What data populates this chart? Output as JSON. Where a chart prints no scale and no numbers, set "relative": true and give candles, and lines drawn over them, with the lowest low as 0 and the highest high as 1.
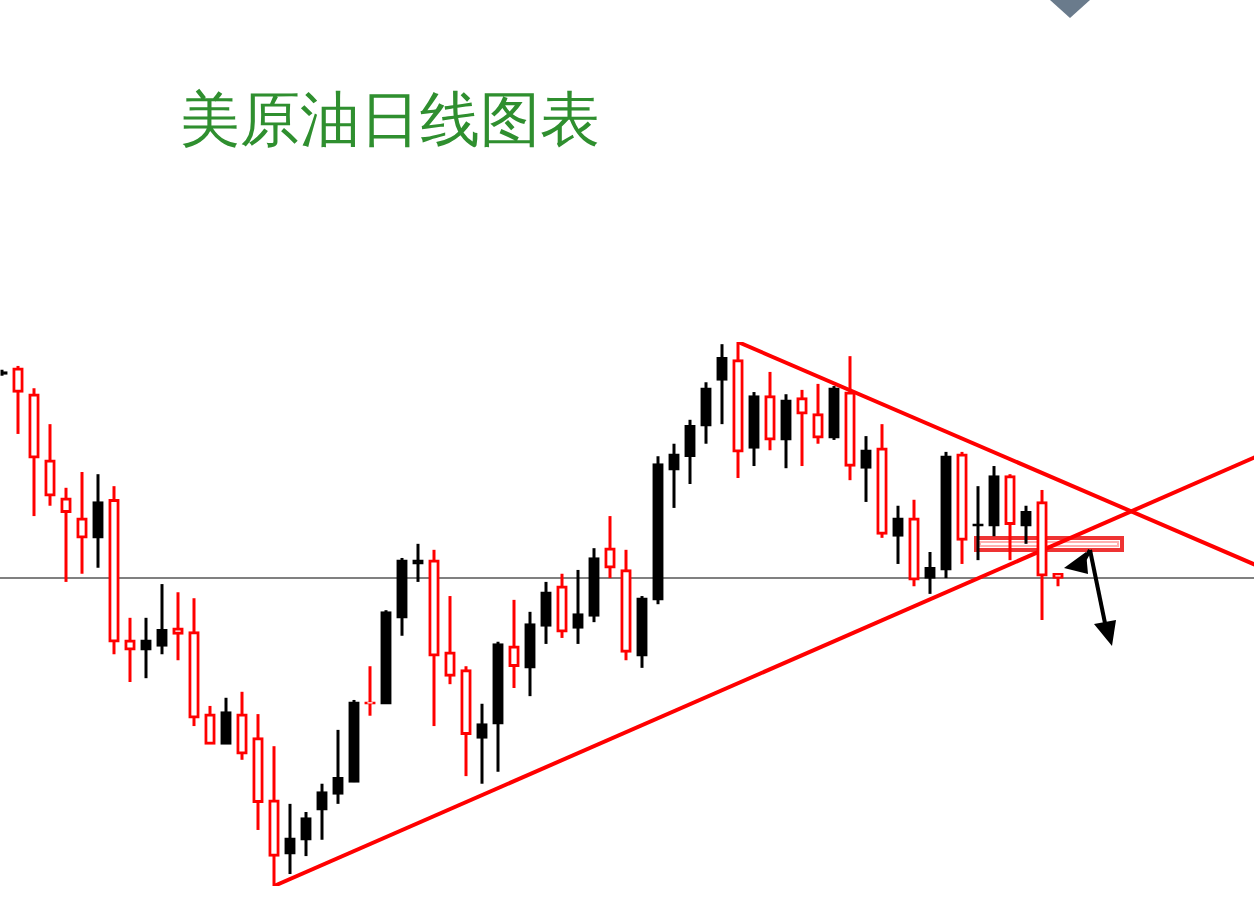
{
  "chart_data": {
    "type": "candlestick",
    "title": "美原油日线图表",
    "relative": true,
    "categories": [
      null,
      null,
      null,
      null,
      null,
      null,
      null,
      null,
      null,
      null,
      null,
      null,
      null,
      null,
      null,
      null,
      null,
      null,
      null,
      null,
      null,
      null,
      null,
      null,
      null,
      null,
      null,
      null,
      null,
      null,
      null,
      null,
      null,
      null,
      null,
      null,
      null,
      null,
      null,
      null,
      null,
      null,
      null,
      null,
      null,
      null,
      null,
      null,
      null,
      null,
      null,
      null,
      null,
      null,
      null,
      null,
      null,
      null,
      null,
      null,
      null,
      null,
      null,
      null,
      null,
      null,
      null,
      null,
      null,
      null,
      null,
      null,
      null,
      null,
      null,
      null,
      null,
      null,
      null,
      null
    ],
    "ohlc": [
      [
        0.941,
        0.949,
        0.938,
        0.945
      ],
      [
        0.952,
        0.956,
        0.831,
        0.908
      ],
      [
        0.904,
        0.915,
        0.68,
        0.787
      ],
      [
        0.783,
        0.849,
        0.699,
        0.717
      ],
      [
        0.713,
        0.732,
        0.559,
        0.687
      ],
      [
        0.676,
        0.761,
        0.574,
        0.64
      ],
      [
        0.64,
        0.757,
        0.585,
        0.706
      ],
      [
        0.71,
        0.735,
        0.426,
        0.449
      ],
      [
        0.452,
        0.493,
        0.375,
        0.434
      ],
      [
        0.434,
        0.493,
        0.382,
        0.452
      ],
      [
        0.441,
        0.555,
        0.426,
        0.471
      ],
      [
        0.474,
        0.54,
        0.415,
        0.463
      ],
      [
        0.467,
        0.529,
        0.294,
        0.309
      ],
      [
        0.316,
        0.331,
        0.261,
        0.261
      ],
      [
        0.261,
        0.346,
        0.261,
        0.32
      ],
      [
        0.316,
        0.357,
        0.232,
        0.243
      ],
      [
        0.272,
        0.316,
        0.103,
        0.154
      ],
      [
        0.158,
        0.257,
        0,
        0.055
      ],
      [
        0.059,
        0.151,
        0.022,
        0.088
      ],
      [
        0.085,
        0.136,
        0.055,
        0.125
      ],
      [
        0.14,
        0.188,
        0.085,
        0.173
      ],
      [
        0.169,
        0.287,
        0.151,
        0.199
      ],
      [
        0.191,
        0.342,
        0.191,
        0.338
      ],
      [
        0.338,
        0.404,
        0.313,
        0.335
      ],
      [
        0.335,
        0.507,
        0.335,
        0.504
      ],
      [
        0.493,
        0.603,
        0.46,
        0.599
      ],
      [
        0.592,
        0.629,
        0.559,
        0.599
      ],
      [
        0.599,
        0.618,
        0.294,
        0.423
      ],
      [
        0.43,
        0.533,
        0.371,
        0.386
      ],
      [
        0.397,
        0.404,
        0.202,
        0.279
      ],
      [
        0.272,
        0.335,
        0.188,
        0.298
      ],
      [
        0.298,
        0.449,
        0.21,
        0.445
      ],
      [
        0.441,
        0.526,
        0.364,
        0.404
      ],
      [
        0.401,
        0.504,
        0.349,
        0.482
      ],
      [
        0.478,
        0.559,
        0.445,
        0.54
      ],
      [
        0.551,
        0.574,
        0.456,
        0.467
      ],
      [
        0.474,
        0.581,
        0.445,
        0.5
      ],
      [
        0.496,
        0.621,
        0.485,
        0.603
      ],
      [
        0.621,
        0.68,
        0.566,
        0.585
      ],
      [
        0.581,
        0.618,
        0.415,
        0.43
      ],
      [
        0.423,
        0.533,
        0.401,
        0.529
      ],
      [
        0.526,
        0.79,
        0.518,
        0.776
      ],
      [
        0.765,
        0.813,
        0.695,
        0.794
      ],
      [
        0.79,
        0.857,
        0.739,
        0.846
      ],
      [
        0.846,
        0.926,
        0.813,
        0.915
      ],
      [
        0.93,
        0.996,
        0.849,
        0.971
      ],
      [
        0.967,
        1,
        0.75,
        0.798
      ],
      [
        0.805,
        0.908,
        0.772,
        0.901
      ],
      [
        0.901,
        0.945,
        0.801,
        0.82
      ],
      [
        0.82,
        0.904,
        0.768,
        0.893
      ],
      [
        0.897,
        0.912,
        0.772,
        0.868
      ],
      [
        0.868,
        0.923,
        0.813,
        0.824
      ],
      [
        0.824,
        0.919,
        0.82,
        0.915
      ],
      [
        0.908,
        0.974,
        0.746,
        0.772
      ],
      [
        0.768,
        0.827,
        0.706,
        0.801
      ],
      [
        0.805,
        0.849,
        0.64,
        0.647
      ],
      [
        0.643,
        0.699,
        0.592,
        0.676
      ],
      [
        0.676,
        0.71,
        0.551,
        0.563
      ],
      [
        0.566,
        0.614,
        0.537,
        0.585
      ],
      [
        0.581,
        0.798,
        0.566,
        0.79
      ],
      [
        0.794,
        0.798,
        0.592,
        0.636
      ],
      [
        0.662,
        0.735,
        0.599,
        0.665
      ],
      [
        0.662,
        0.772,
        0.643,
        0.754
      ],
      [
        0.754,
        0.757,
        0.599,
        0.665
      ],
      [
        0.662,
        0.699,
        0.629,
        0.688
      ],
      [
        0.706,
        0.728,
        0.489,
        0.57
      ],
      [
        0.574,
        0.574,
        0.551,
        0.566
      ],
      null,
      null,
      null,
      null,
      null,
      null,
      null,
      null,
      null,
      null,
      null,
      null,
      null
    ],
    "colors": [
      "#000000",
      "#ff0000",
      "#ff0000",
      "#ff0000",
      "#ff0000",
      "#ff0000",
      "#000000",
      "#ff0000",
      "#ff0000",
      "#000000",
      "#000000",
      "#ff0000",
      "#ff0000",
      "#ff0000",
      "#000000",
      "#ff0000",
      "#ff0000",
      "#ff0000",
      "#000000",
      "#000000",
      "#000000",
      "#000000",
      "#000000",
      "#ff0000",
      "#000000",
      "#000000",
      "#000000",
      "#ff0000",
      "#ff0000",
      "#ff0000",
      "#000000",
      "#000000",
      "#ff0000",
      "#000000",
      "#000000",
      "#ff0000",
      "#000000",
      "#000000",
      "#ff0000",
      "#ff0000",
      "#000000",
      "#000000",
      "#000000",
      "#000000",
      "#000000",
      "#000000",
      "#ff0000",
      "#000000",
      "#ff0000",
      "#000000",
      "#ff0000",
      "#ff0000",
      "#000000",
      "#ff0000",
      "#000000",
      "#ff0000",
      "#000000",
      "#ff0000",
      "#000000",
      "#000000",
      "#ff0000",
      "#000000",
      "#000000",
      "#ff0000",
      "#000000",
      "#ff0000",
      "#ff0000",
      null,
      null,
      null,
      null,
      null,
      null,
      null,
      null,
      null,
      null,
      null,
      null,
      null
    ],
    "series": [
      {
        "type": "line",
        "color": "#ff0000",
        "values": [
          null,
          null,
          null,
          null,
          null,
          null,
          null,
          null,
          null,
          null,
          null,
          null,
          null,
          null,
          null,
          null,
          null,
          0,
          null,
          null,
          null,
          null,
          null,
          null,
          null,
          null,
          null,
          null,
          null,
          null,
          null,
          null,
          null,
          null,
          null,
          null,
          null,
          null,
          null,
          null,
          null,
          null,
          null,
          null,
          null,
          null,
          null,
          null,
          null,
          null,
          null,
          null,
          null,
          null,
          null,
          null,
          null,
          null,
          null,
          null,
          null,
          null,
          null,
          null,
          null,
          null,
          null,
          null,
          null,
          null,
          null,
          null,
          null,
          null,
          null,
          null,
          null,
          null,
          null,
          0.797
        ]
      },
      {
        "type": "line",
        "color": "#ff0000",
        "values": [
          null,
          null,
          null,
          null,
          null,
          null,
          null,
          null,
          null,
          null,
          null,
          null,
          null,
          null,
          null,
          null,
          null,
          null,
          null,
          null,
          null,
          null,
          null,
          null,
          null,
          null,
          null,
          null,
          null,
          null,
          null,
          null,
          null,
          null,
          null,
          null,
          null,
          null,
          null,
          null,
          null,
          null,
          null,
          null,
          null,
          null,
          1,
          null,
          null,
          null,
          null,
          null,
          null,
          null,
          null,
          null,
          null,
          null,
          null,
          null,
          null,
          null,
          null,
          null,
          null,
          null,
          null,
          null,
          null,
          null,
          null,
          null,
          null,
          null,
          null,
          null,
          null,
          null,
          null,
          0.582
        ]
      }
    ],
    "ref_lines": [
      {
        "axis": "y",
        "value": 0.566,
        "color": "#808080"
      }
    ]
  }
}
